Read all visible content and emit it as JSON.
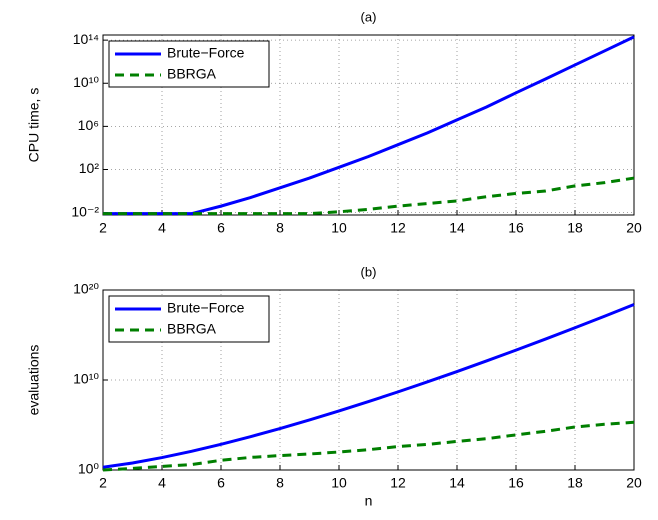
{
  "chart_data": [
    {
      "type": "line",
      "title": "(a)",
      "y_label": "CPU time, s",
      "x": [
        2,
        3,
        4,
        5,
        6,
        7,
        8,
        9,
        10,
        11,
        12,
        13,
        14,
        15,
        16,
        17,
        18,
        19,
        20
      ],
      "series": [
        {
          "name": "Brute−Force",
          "color": "#0000ff",
          "style": "solid",
          "values": [
            0.008,
            0.008,
            0.008,
            0.008,
            0.04,
            0.25,
            2,
            16,
            160,
            1600,
            20000,
            250000,
            4000000,
            63000000,
            1300000000,
            25000000000,
            500000000000,
            10000000000000,
            200000000000000
          ]
        },
        {
          "name": "BBRGA",
          "color": "#007f00",
          "style": "dashed",
          "values": [
            0.008,
            0.008,
            0.008,
            0.008,
            0.008,
            0.008,
            0.008,
            0.008,
            0.012,
            0.02,
            0.04,
            0.07,
            0.12,
            0.3,
            0.6,
            1,
            3,
            6,
            16
          ]
        }
      ],
      "xlim": [
        2,
        20
      ],
      "xticks": [
        2,
        4,
        6,
        8,
        10,
        12,
        14,
        16,
        18,
        20
      ],
      "ylim": [
        0.006,
        300000000000000
      ],
      "yscale": "log",
      "yticks": [
        {
          "value": 0.01,
          "label": "10⁻²"
        },
        {
          "value": 100,
          "label": "10²"
        },
        {
          "value": 1000000,
          "label": "10⁶"
        },
        {
          "value": 10000000000,
          "label": "10¹⁰"
        },
        {
          "value": 100000000000000,
          "label": "10¹⁴"
        }
      ],
      "grid": true,
      "legend": "upper-left"
    },
    {
      "type": "line",
      "title": "(b)",
      "y_label": "evaluations",
      "x_label": "n",
      "x": [
        2,
        3,
        4,
        5,
        6,
        7,
        8,
        9,
        10,
        11,
        12,
        13,
        14,
        15,
        16,
        17,
        18,
        19,
        20
      ],
      "series": [
        {
          "name": "Brute−Force",
          "color": "#0000ff",
          "style": "solid",
          "values": [
            2,
            6,
            24,
            120,
            720,
            5040,
            40320,
            362880,
            3628800,
            39916800,
            479001600,
            6227020800,
            87178291200,
            1307674368000,
            20922789888000,
            355687428096000,
            6402373705728000,
            121645100408832000,
            2432902008176640000
          ]
        },
        {
          "name": "BBRGA",
          "color": "#007f00",
          "style": "dashed",
          "values": [
            1,
            1.5,
            2.5,
            4,
            12,
            25,
            40,
            60,
            100,
            180,
            400,
            700,
            1500,
            3000,
            8000,
            20000,
            60000,
            120000,
            200000
          ]
        }
      ],
      "xlim": [
        2,
        20
      ],
      "xticks": [
        2,
        4,
        6,
        8,
        10,
        12,
        14,
        16,
        18,
        20
      ],
      "ylim": [
        1,
        100000000000000000000
      ],
      "yscale": "log",
      "yticks": [
        {
          "value": 1,
          "label": "10⁰"
        },
        {
          "value": 10000000000,
          "label": "10¹⁰"
        },
        {
          "value": 100000000000000000000,
          "label": "10²⁰"
        }
      ],
      "grid": true,
      "legend": "upper-left"
    }
  ]
}
